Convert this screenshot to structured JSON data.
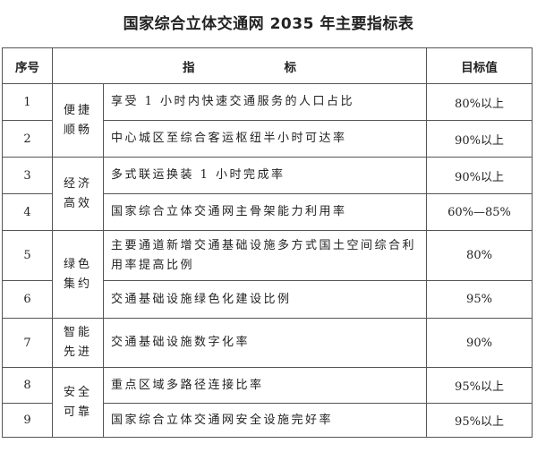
{
  "title": "国家综合立体交通网 2035 年主要指标表",
  "headers": {
    "seq": "序号",
    "indicator_1": "指",
    "indicator_2": "标",
    "target": "目标值"
  },
  "categories": [
    {
      "line1": "便捷",
      "line2": "顺畅"
    },
    {
      "line1": "经济",
      "line2": "高效"
    },
    {
      "line1": "绿色",
      "line2": "集约"
    },
    {
      "line1": "智能",
      "line2": "先进"
    },
    {
      "line1": "安全",
      "line2": "可靠"
    }
  ],
  "rows": [
    {
      "seq": "1",
      "indicator": "享受 1 小时内快速交通服务的人口占比",
      "target": "80%以上"
    },
    {
      "seq": "2",
      "indicator": "中心城区至综合客运枢纽半小时可达率",
      "target": "90%以上"
    },
    {
      "seq": "3",
      "indicator": "多式联运换装 1 小时完成率",
      "target": "90%以上"
    },
    {
      "seq": "4",
      "indicator": "国家综合立体交通网主骨架能力利用率",
      "target": "60%—85%"
    },
    {
      "seq": "5",
      "indicator": "主要通道新增交通基础设施多方式国土空间综合利用率提高比例",
      "target": "80%"
    },
    {
      "seq": "6",
      "indicator": "交通基础设施绿色化建设比例",
      "target": "95%"
    },
    {
      "seq": "7",
      "indicator": "交通基础设施数字化率",
      "target": "90%"
    },
    {
      "seq": "8",
      "indicator": "重点区域多路径连接比率",
      "target": "95%以上"
    },
    {
      "seq": "9",
      "indicator": "国家综合立体交通网安全设施完好率",
      "target": "95%以上"
    }
  ]
}
